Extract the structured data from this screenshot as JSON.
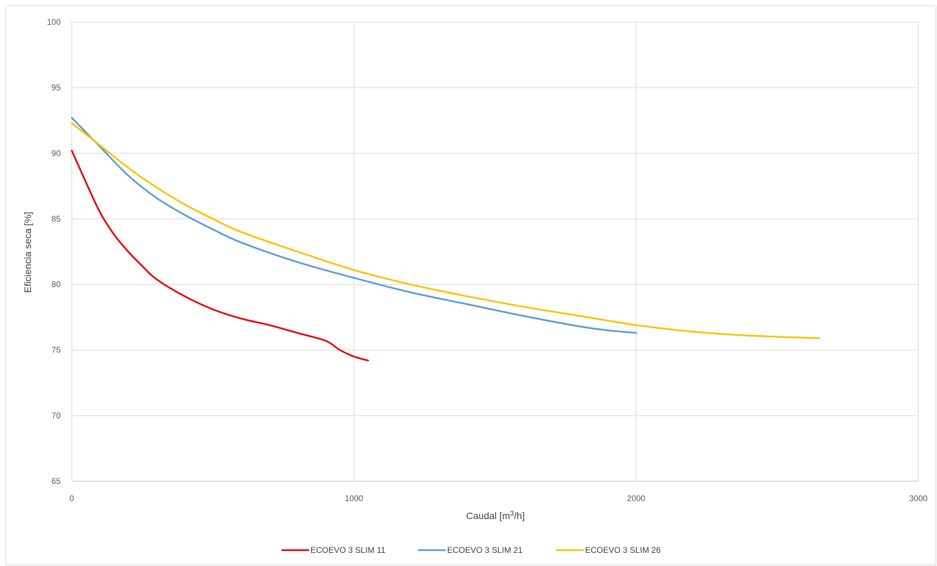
{
  "chart_data": {
    "type": "line",
    "title": "",
    "xlabel_prefix": "Caudal [m",
    "xlabel_sup": "3",
    "xlabel_suffix": "/h]",
    "ylabel": "Eficiencia seca [%]",
    "xlim": [
      0,
      3000
    ],
    "ylim": [
      65,
      100
    ],
    "x_ticks": [
      0,
      1000,
      2000,
      3000
    ],
    "y_ticks": [
      65,
      70,
      75,
      80,
      85,
      90,
      95,
      100
    ],
    "grid": true,
    "legend_position": "bottom",
    "series": [
      {
        "name": "ECOEVO 3 SLIM 11",
        "color": "#e8000b",
        "points": [
          [
            0,
            90.2
          ],
          [
            50,
            87.8
          ],
          [
            100,
            85.5
          ],
          [
            150,
            83.8
          ],
          [
            200,
            82.5
          ],
          [
            250,
            81.4
          ],
          [
            300,
            80.4
          ],
          [
            400,
            79.1
          ],
          [
            500,
            78.1
          ],
          [
            600,
            77.4
          ],
          [
            700,
            76.9
          ],
          [
            800,
            76.3
          ],
          [
            900,
            75.7
          ],
          [
            950,
            75.0
          ],
          [
            1000,
            74.5
          ],
          [
            1050,
            74.2
          ]
        ]
      },
      {
        "name": "ECOEVO 3 SLIM 21",
        "color": "#5b9bd5",
        "points": [
          [
            0,
            92.7
          ],
          [
            100,
            90.5
          ],
          [
            200,
            88.3
          ],
          [
            300,
            86.6
          ],
          [
            400,
            85.3
          ],
          [
            500,
            84.2
          ],
          [
            600,
            83.2
          ],
          [
            800,
            81.7
          ],
          [
            1000,
            80.5
          ],
          [
            1200,
            79.4
          ],
          [
            1400,
            78.5
          ],
          [
            1600,
            77.6
          ],
          [
            1800,
            76.8
          ],
          [
            1900,
            76.5
          ],
          [
            2000,
            76.3
          ]
        ]
      },
      {
        "name": "ECOEVO 3 SLIM 26",
        "color": "#ffc000",
        "points": [
          [
            0,
            92.3
          ],
          [
            100,
            90.6
          ],
          [
            200,
            88.9
          ],
          [
            300,
            87.4
          ],
          [
            400,
            86.1
          ],
          [
            500,
            85.0
          ],
          [
            600,
            84.0
          ],
          [
            800,
            82.5
          ],
          [
            1000,
            81.1
          ],
          [
            1200,
            80.0
          ],
          [
            1400,
            79.1
          ],
          [
            1600,
            78.3
          ],
          [
            1800,
            77.6
          ],
          [
            2000,
            76.9
          ],
          [
            2200,
            76.4
          ],
          [
            2400,
            76.1
          ],
          [
            2650,
            75.9
          ]
        ]
      }
    ]
  }
}
